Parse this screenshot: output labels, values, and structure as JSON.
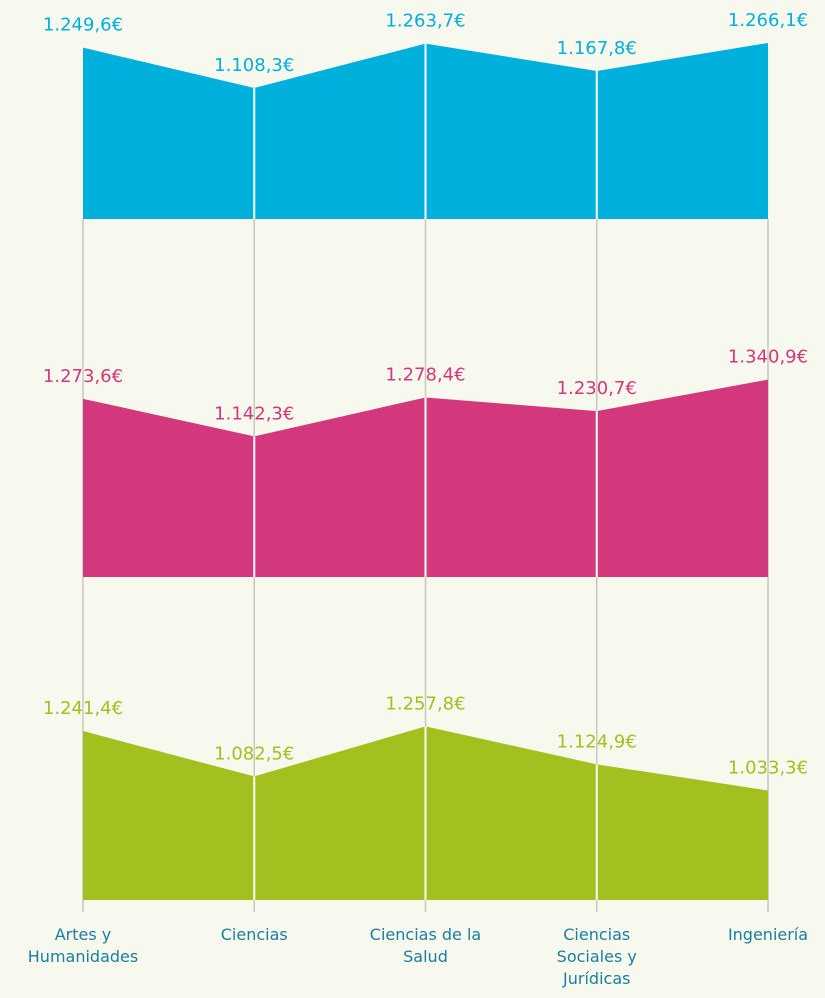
{
  "chart_data": {
    "type": "area",
    "categories": [
      "Artes y Humanidades",
      "Ciencias",
      "Ciencias de la Salud",
      "Ciencias Sociales y Jurídicas",
      "Ingeniería"
    ],
    "ylim": [
      650,
      1350
    ],
    "series": [
      {
        "color": "#00b0dc",
        "values": [
          1249.6,
          1108.3,
          1263.7,
          1167.8,
          1266.1
        ],
        "value_labels": [
          "1.249,6€",
          "1.108,3€",
          "1.263,7€",
          "1.167,8€",
          "1.266,1€"
        ]
      },
      {
        "color": "#d4387c",
        "values": [
          1273.6,
          1142.3,
          1278.4,
          1230.7,
          1340.9
        ],
        "value_labels": [
          "1.273,6€",
          "1.142,3€",
          "1.278,4€",
          "1.230,7€",
          "1.340,9€"
        ]
      },
      {
        "color": "#a3c11e",
        "values": [
          1241.4,
          1082.5,
          1257.8,
          1124.9,
          1033.3
        ],
        "value_labels": [
          "1.241,4€",
          "1.082,5€",
          "1.257,8€",
          "1.124,9€",
          "1.033,3€"
        ]
      }
    ]
  }
}
